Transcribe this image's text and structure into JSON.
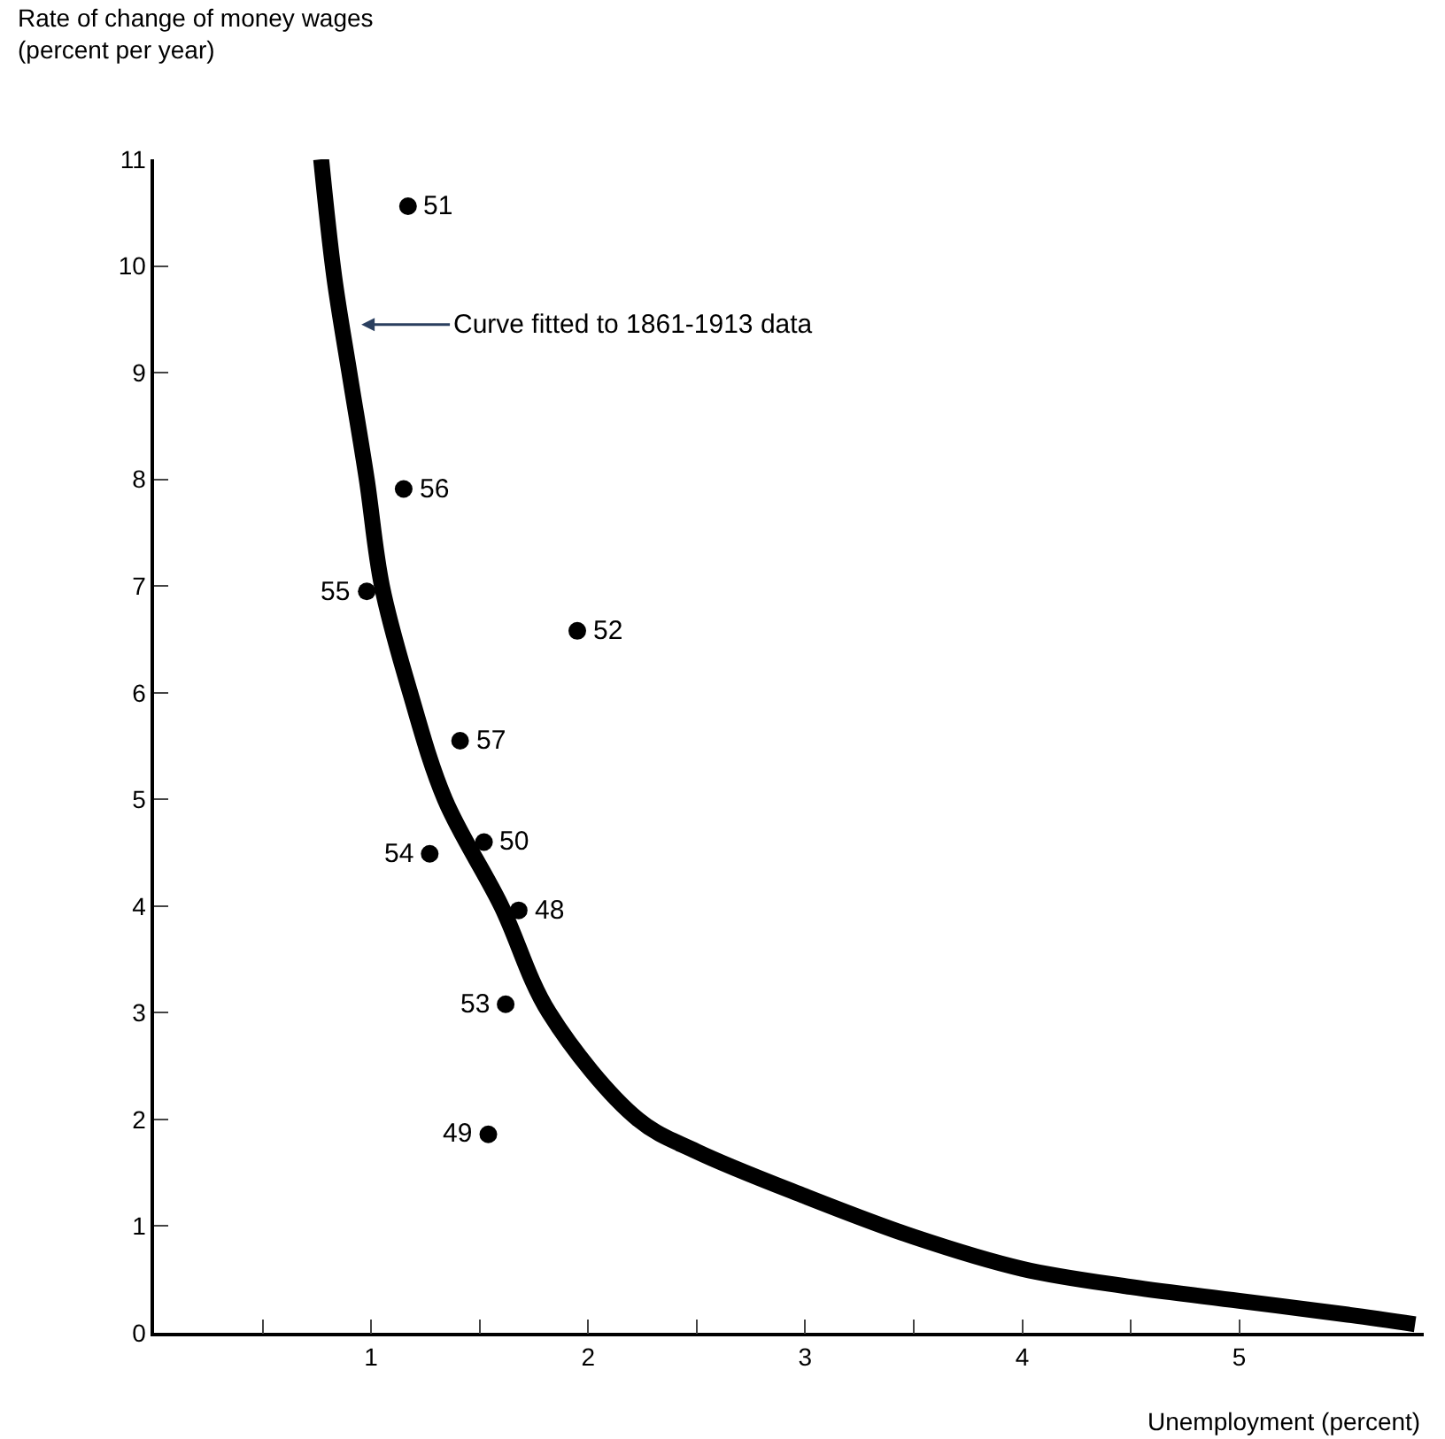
{
  "chart_data": {
    "type": "scatter",
    "xlabel": "Unemployment (percent)",
    "ylabel": "Rate of change of money wages\n(percent per year)",
    "series": [
      {
        "color": "#000000",
        "marker": "circle",
        "x": [
          1.68,
          1.54,
          1.52,
          1.17,
          1.95,
          1.62,
          1.27,
          0.98,
          1.15,
          1.41
        ],
        "values": [
          3.96,
          1.86,
          4.6,
          10.56,
          6.58,
          3.08,
          4.49,
          6.95,
          7.91,
          5.55
        ]
      },
      {
        "type": "line",
        "color": "#000000",
        "marker": "none",
        "x": [
          0.77,
          0.83,
          0.9,
          0.98,
          1.05,
          1.18,
          1.34,
          1.6,
          1.82,
          2.23,
          2.5,
          3,
          3.5,
          4,
          4.5,
          5,
          5.5,
          5.81
        ],
        "values": [
          11,
          9.9,
          9,
          8,
          7,
          6,
          5,
          4,
          3,
          2,
          1.7,
          1.28,
          0.9,
          0.6,
          0.43,
          0.3,
          0.17,
          0.08
        ]
      }
    ],
    "annotations": [
      "Curve fitted to 1861-1913 data",
      {
        "text": "48",
        "x": 1.68,
        "y": 3.96
      },
      {
        "text": "49",
        "x": 1.54,
        "y": 1.86
      },
      {
        "text": "50",
        "x": 1.52,
        "y": 4.6
      },
      {
        "text": "51",
        "x": 1.17,
        "y": 10.56
      },
      {
        "text": "52",
        "x": 1.95,
        "y": 6.58
      },
      {
        "text": "53",
        "x": 1.62,
        "y": 3.08
      },
      {
        "text": "54",
        "x": 1.27,
        "y": 4.49
      },
      {
        "text": "55",
        "x": 0.98,
        "y": 6.95
      },
      {
        "text": "56",
        "x": 1.15,
        "y": 7.91
      },
      {
        "text": "57",
        "x": 1.41,
        "y": 5.55
      }
    ],
    "xlim": [
      0,
      5.85
    ],
    "ylim": [
      0,
      11
    ],
    "xticks": [
      {
        "value": 0,
        "label": null
      },
      {
        "value": 0.5,
        "label": null
      },
      1,
      {
        "value": 1.5,
        "label": null
      },
      2,
      {
        "value": 2.5,
        "label": null
      },
      3,
      {
        "value": 3.5,
        "label": null
      },
      4,
      {
        "value": 4.5,
        "label": null
      },
      5
    ],
    "yticks": [
      0,
      1,
      2,
      3,
      4,
      5,
      6,
      7,
      8,
      9,
      10,
      11
    ]
  }
}
